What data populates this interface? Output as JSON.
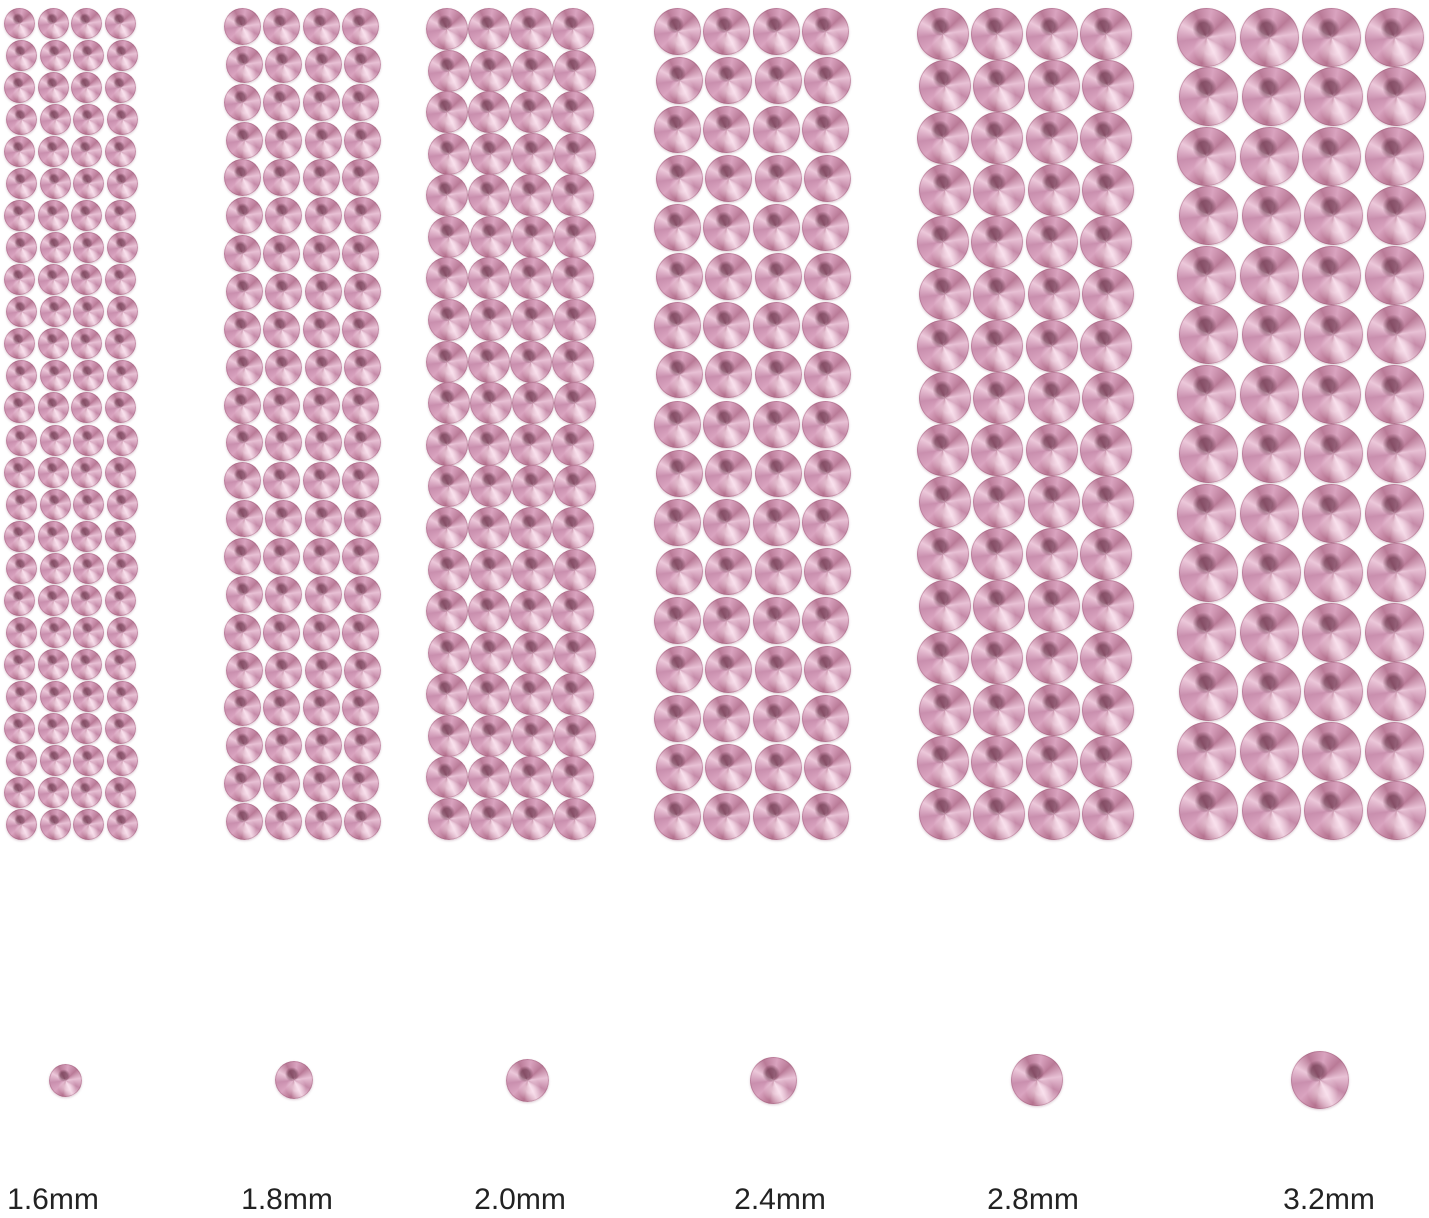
{
  "colors": {
    "stone": "#d9a3bf",
    "background": "#ffffff",
    "label": "#222222"
  },
  "sizes": [
    {
      "label": "1.6mm"
    },
    {
      "label": "1.8mm"
    },
    {
      "label": "2.0mm"
    },
    {
      "label": "2.4mm"
    },
    {
      "label": "2.8mm"
    },
    {
      "label": "3.2mm"
    }
  ]
}
